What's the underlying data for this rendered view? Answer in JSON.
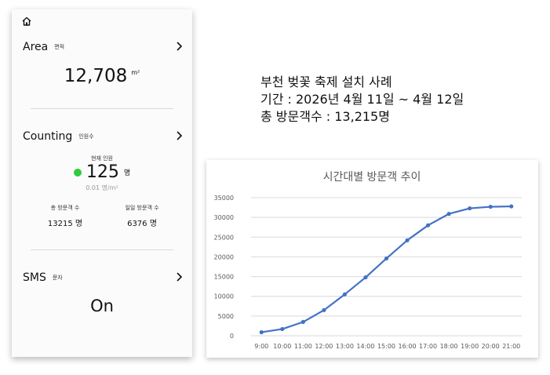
{
  "panel": {
    "area": {
      "title": "Area",
      "subtitle": "면적",
      "value": "12,708",
      "unit": "m²"
    },
    "counting": {
      "title": "Counting",
      "subtitle": "인원수",
      "current_label": "현재 인원",
      "current_value": "125",
      "current_unit": "명",
      "status_color": "#2ecc40",
      "density": "0.01 명/m²",
      "total_label": "총 방문객 수",
      "total_value": "13215 명",
      "daily_label": "일일 방문객 수",
      "daily_value": "6376 명"
    },
    "sms": {
      "title": "SMS",
      "subtitle": "문자",
      "value": "On"
    }
  },
  "info": {
    "line1": "부천 벚꽃 축제 설치 사례",
    "line2": "기간 : 2026년 4월 11일 ~ 4월 12일",
    "line3": "총 방문객수 : 13,215명"
  },
  "chart_data": {
    "type": "line",
    "title": "시간대별 방문객 추이",
    "categories": [
      "9:00",
      "10:00",
      "11:00",
      "12:00",
      "13:00",
      "14:00",
      "15:00",
      "16:00",
      "17:00",
      "18:00",
      "19:00",
      "20:00",
      "21:00"
    ],
    "series": [
      {
        "values": [
          900,
          1700,
          3500,
          6500,
          10500,
          14800,
          19600,
          24200,
          28000,
          30900,
          32300,
          32700,
          32800
        ]
      }
    ],
    "ylim": [
      0,
      35000
    ],
    "yticks": [
      0,
      5000,
      10000,
      15000,
      20000,
      25000,
      30000,
      35000
    ],
    "grid": true,
    "line_color": "#4472c4"
  }
}
